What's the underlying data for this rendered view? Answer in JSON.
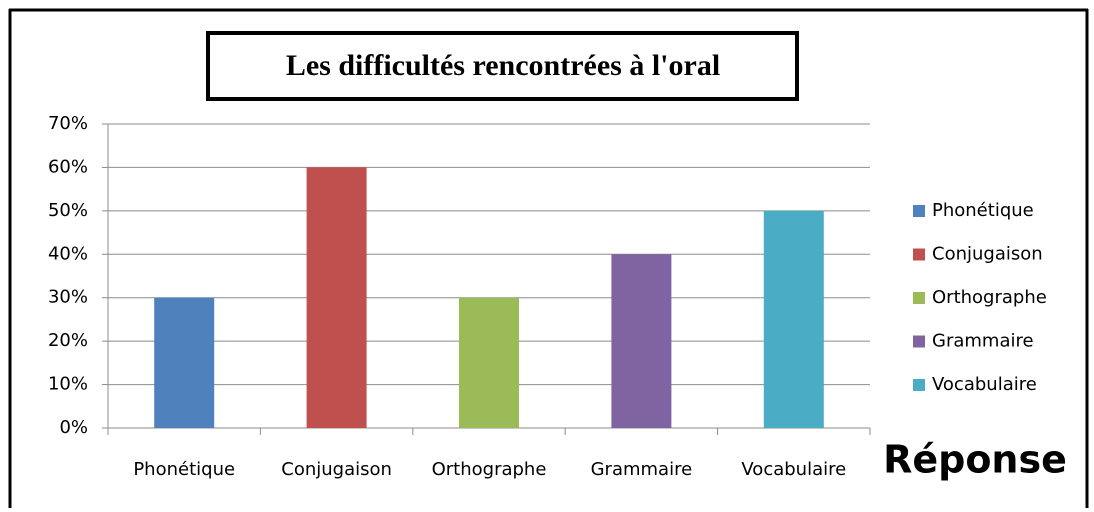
{
  "chart_data": {
    "type": "bar",
    "title": "Les difficultés rencontrées à l'oral",
    "x_label": "Réponse",
    "categories": [
      "Phonétique",
      "Conjugaison",
      "Orthographe",
      "Grammaire",
      "Vocabulaire"
    ],
    "values": [
      30,
      60,
      30,
      40,
      50
    ],
    "colors": [
      "#4f81bd",
      "#c0504d",
      "#9bbb59",
      "#8064a2",
      "#4bacc6"
    ],
    "ylim": [
      0,
      70
    ],
    "yticks": [
      {
        "value": 0,
        "label": "0%"
      },
      {
        "value": 10,
        "label": "10%"
      },
      {
        "value": 20,
        "label": "20%"
      },
      {
        "value": 30,
        "label": "30%"
      },
      {
        "value": 40,
        "label": "40%"
      },
      {
        "value": 50,
        "label": "50%"
      },
      {
        "value": 60,
        "label": "60%"
      },
      {
        "value": 70,
        "label": "70%"
      }
    ],
    "grid": true,
    "legend": "right"
  }
}
